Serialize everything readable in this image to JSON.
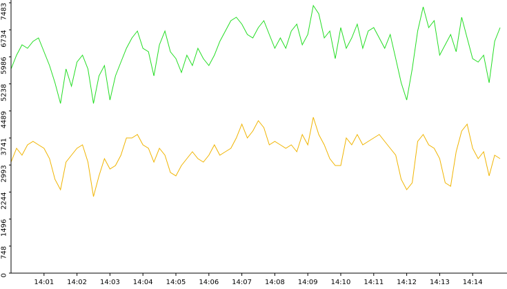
{
  "chart_data": {
    "type": "line",
    "categories": [
      null,
      null,
      null,
      null,
      null,
      null,
      "14:01",
      null,
      null,
      null,
      null,
      null,
      "14:02",
      null,
      null,
      null,
      null,
      null,
      "14:03",
      null,
      null,
      null,
      null,
      null,
      "14:04",
      null,
      null,
      null,
      null,
      null,
      "14:05",
      null,
      null,
      null,
      null,
      null,
      "14:06",
      null,
      null,
      null,
      null,
      null,
      "14:07",
      null,
      null,
      null,
      null,
      null,
      "14:08",
      null,
      null,
      null,
      null,
      null,
      "14:09",
      null,
      null,
      null,
      null,
      null,
      "14:10",
      null,
      null,
      null,
      null,
      null,
      "14:11",
      null,
      null,
      null,
      null,
      null,
      "14:12",
      null,
      null,
      null,
      null,
      null,
      "14:13",
      null,
      null,
      null,
      null,
      null,
      "14:14",
      null,
      null,
      null,
      null,
      null
    ],
    "series": [
      {
        "color": "#22dd22",
        "values": [
          5651,
          6032,
          6319,
          6223,
          6414,
          6510,
          6128,
          5746,
          5269,
          4696,
          5651,
          5173,
          5842,
          6032,
          5651,
          4696,
          5460,
          5746,
          4792,
          5460,
          5842,
          6223,
          6510,
          6701,
          6223,
          6128,
          5460,
          6319,
          6701,
          6128,
          5937,
          5555,
          6032,
          5746,
          6223,
          5937,
          5746,
          6032,
          6414,
          6701,
          6987,
          7082,
          6891,
          6605,
          6510,
          6796,
          6987,
          6605,
          6223,
          6510,
          6223,
          6701,
          6891,
          6319,
          6605,
          7407,
          7178,
          6510,
          6701,
          5937,
          6796,
          6223,
          6510,
          6891,
          6223,
          6701,
          6796,
          6510,
          6223,
          6605,
          5937,
          5269,
          4792,
          5651,
          6701,
          7369,
          6796,
          6987,
          6032,
          6319,
          6605,
          6128,
          7082,
          6510,
          5937,
          5842,
          6032,
          5269,
          6414,
          6796
        ]
      },
      {
        "color": "#f0b400",
        "values": [
          3073,
          3455,
          3264,
          3551,
          3646,
          3551,
          3455,
          3169,
          2596,
          2310,
          3073,
          3264,
          3455,
          3551,
          3073,
          2119,
          2692,
          3169,
          2883,
          2978,
          3264,
          3742,
          3742,
          3837,
          3551,
          3455,
          3073,
          3455,
          3264,
          2787,
          2692,
          2978,
          3169,
          3360,
          3169,
          3073,
          3264,
          3551,
          3264,
          3360,
          3455,
          3742,
          4123,
          3742,
          3933,
          4219,
          4028,
          3551,
          3646,
          3551,
          3455,
          3551,
          3360,
          3837,
          3551,
          4314,
          3837,
          3551,
          3169,
          2978,
          2978,
          3742,
          3551,
          3837,
          3551,
          3646,
          3742,
          3837,
          3646,
          3455,
          3264,
          2596,
          2310,
          2501,
          3646,
          3837,
          3551,
          3455,
          3169,
          2501,
          2405,
          3360,
          3933,
          4123,
          3455,
          3169,
          3360,
          2692,
          3264,
          3169
        ]
      }
    ],
    "ylim": [
      0,
      7483
    ],
    "yticks": [
      0,
      748,
      1496,
      2244,
      2993,
      3741,
      4489,
      5238,
      5986,
      6734,
      7483
    ]
  }
}
